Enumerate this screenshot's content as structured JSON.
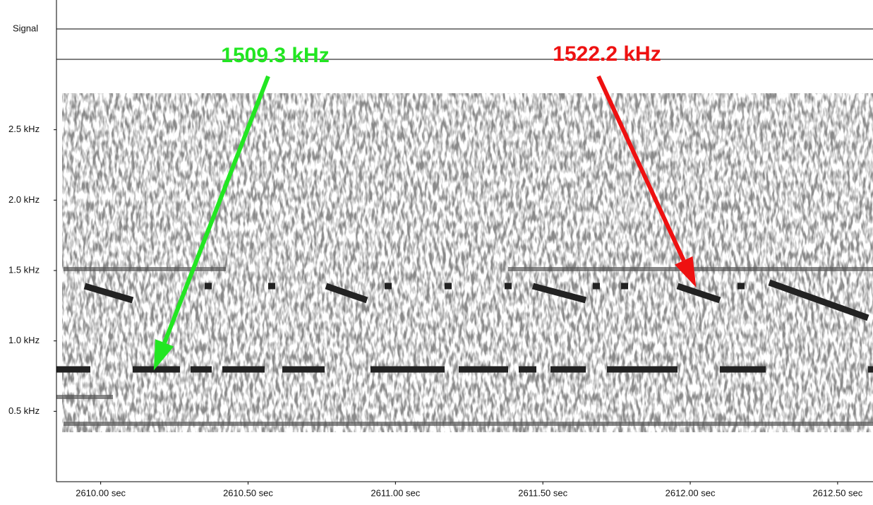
{
  "chart_data": {
    "type": "spectrogram",
    "signal_label": "Signal",
    "xlim": [
      2609.85,
      2612.62
    ],
    "xticks": [
      {
        "value": 2610,
        "label": "2610.00 sec"
      },
      {
        "value": 2610.5,
        "label": "2610.50 sec"
      },
      {
        "value": 2611,
        "label": "2611.00 sec"
      },
      {
        "value": 2611.5,
        "label": "2611.50 sec"
      },
      {
        "value": 2612,
        "label": "2612.00 sec"
      },
      {
        "value": 2612.5,
        "label": "2612.50 sec"
      }
    ],
    "ylim": [
      0,
      3
    ],
    "yticks": [
      {
        "value": 0.5,
        "label": "0.5 kHz"
      },
      {
        "value": 1,
        "label": "1.0 kHz"
      },
      {
        "value": 1.5,
        "label": "1.5 kHz"
      },
      {
        "value": 2,
        "label": "2.0 kHz"
      },
      {
        "value": 2.5,
        "label": "2.5 kHz"
      }
    ],
    "annotations": [
      {
        "text": "1509.3 kHz",
        "color": "#22e622",
        "x": 2610.18,
        "y": 0.79
      },
      {
        "text": "1522.2 kHz",
        "color": "#ee1111",
        "x": 2612.02,
        "y": 1.38
      }
    ]
  }
}
